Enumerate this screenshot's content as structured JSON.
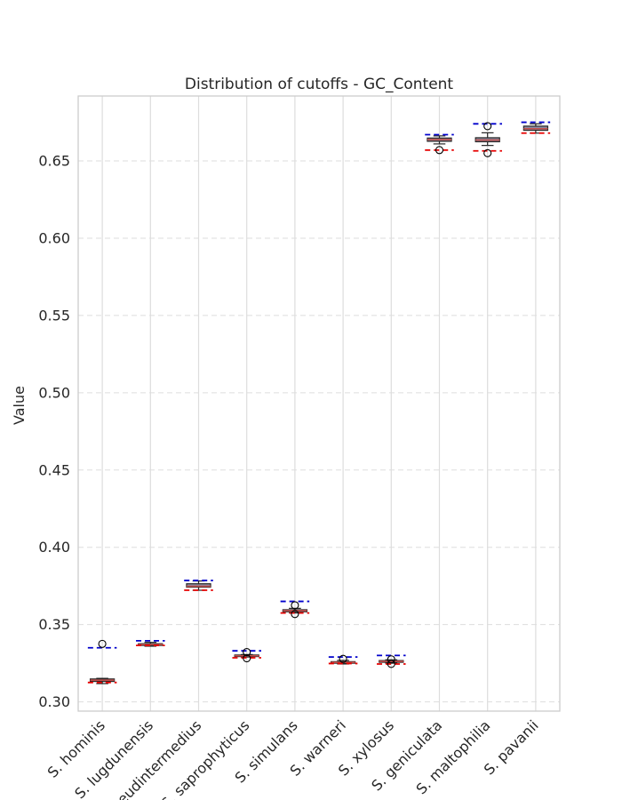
{
  "chart_data": {
    "type": "box",
    "title": "Distribution of cutoffs - GC_Content",
    "xlabel": "",
    "ylabel": "Value",
    "ylim": [
      0.294,
      0.692
    ],
    "yticks": [
      0.3,
      0.35,
      0.4,
      0.45,
      0.5,
      0.55,
      0.6,
      0.65
    ],
    "ytick_labels": [
      "0.30",
      "0.35",
      "0.40",
      "0.45",
      "0.50",
      "0.55",
      "0.60",
      "0.65"
    ],
    "grid": true,
    "categories": [
      "S. hominis",
      "S. lugdunensis",
      "S. pseudintermedius",
      "S. saprophyticus",
      "S. simulans",
      "S. warneri",
      "S. xylosus",
      "S. geniculata",
      "S. maltophilia",
      "S. pavanii"
    ],
    "boxes": [
      {
        "q1": 0.3132,
        "median": 0.314,
        "q3": 0.3148,
        "whisker_low": 0.3118,
        "whisker_high": 0.3152,
        "outliers": [
          0.3375
        ],
        "upper_line": 0.335,
        "lower_line": 0.3125
      },
      {
        "q1": 0.3365,
        "median": 0.337,
        "q3": 0.3376,
        "whisker_low": 0.336,
        "whisker_high": 0.3385,
        "outliers": [],
        "upper_line": 0.3395,
        "lower_line": 0.3365
      },
      {
        "q1": 0.3742,
        "median": 0.3748,
        "q3": 0.3764,
        "whisker_low": 0.3722,
        "whisker_high": 0.3782,
        "outliers": [],
        "upper_line": 0.3785,
        "lower_line": 0.3722
      },
      {
        "q1": 0.3293,
        "median": 0.3298,
        "q3": 0.3303,
        "whisker_low": 0.329,
        "whisker_high": 0.3306,
        "outliers": [
          0.3322,
          0.3282
        ],
        "upper_line": 0.333,
        "lower_line": 0.3285
      },
      {
        "q1": 0.3583,
        "median": 0.359,
        "q3": 0.3596,
        "whisker_low": 0.3575,
        "whisker_high": 0.3605,
        "outliers": [
          0.3625,
          0.3568
        ],
        "upper_line": 0.365,
        "lower_line": 0.3575
      },
      {
        "q1": 0.325,
        "median": 0.3255,
        "q3": 0.326,
        "whisker_low": 0.3245,
        "whisker_high": 0.3268,
        "outliers": [
          0.3278
        ],
        "upper_line": 0.329,
        "lower_line": 0.3248
      },
      {
        "q1": 0.3256,
        "median": 0.3262,
        "q3": 0.3267,
        "whisker_low": 0.325,
        "whisker_high": 0.3272,
        "outliers": [
          0.3275,
          0.3245
        ],
        "upper_line": 0.33,
        "lower_line": 0.3245
      },
      {
        "q1": 0.6627,
        "median": 0.6638,
        "q3": 0.6648,
        "whisker_low": 0.661,
        "whisker_high": 0.6662,
        "outliers": [
          0.657
        ],
        "upper_line": 0.667,
        "lower_line": 0.657
      },
      {
        "q1": 0.6624,
        "median": 0.6635,
        "q3": 0.665,
        "whisker_low": 0.66,
        "whisker_high": 0.6682,
        "outliers": [
          0.6725,
          0.655
        ],
        "upper_line": 0.674,
        "lower_line": 0.6565
      },
      {
        "q1": 0.6698,
        "median": 0.6708,
        "q3": 0.6725,
        "whisker_low": 0.668,
        "whisker_high": 0.674,
        "outliers": [],
        "upper_line": 0.675,
        "lower_line": 0.668
      }
    ],
    "colors": {
      "box_fill": "#8c8ca3",
      "box_edge": "#262626",
      "median": "#c0504d",
      "whisker": "#262626",
      "upper_line": "#0000cc",
      "lower_line": "#e60000",
      "grid": "#dddddd",
      "spine": "#cccccc",
      "text": "#262626"
    }
  }
}
